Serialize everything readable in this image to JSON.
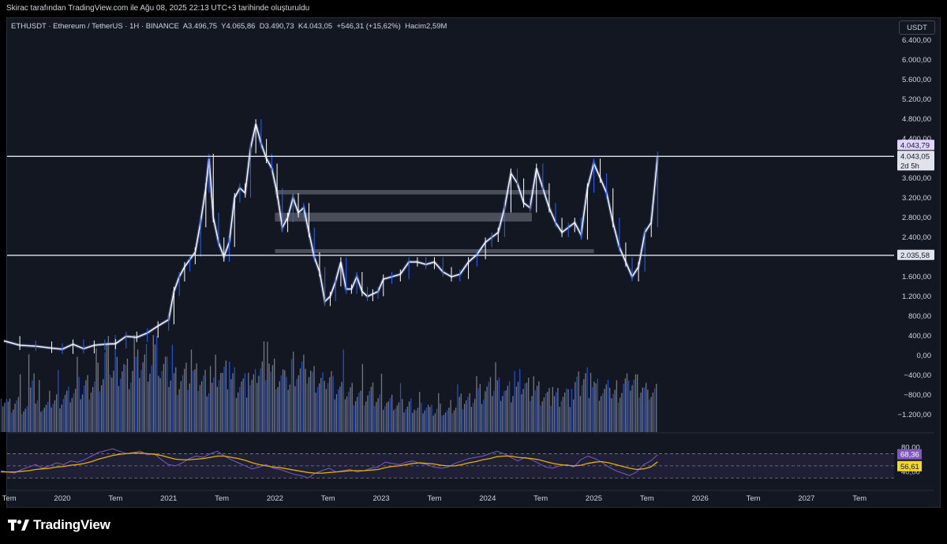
{
  "header": {
    "snapshot_text": "Skirac tarafından TradingView.com ile Ağu 08, 2025 22:13 UTC+3 tarihinde oluşturuldu"
  },
  "legend": {
    "symbol": "ETHUSDT · Ethereum / TetherUS · 1H · BINANCE",
    "open_label": "A",
    "open": "3.496,75",
    "high_label": "Y",
    "high": "4.065,86",
    "low_label": "D",
    "low": "3.490,73",
    "close_label": "K",
    "close": "4.043,05",
    "change": "+546,31 (+15,62%)",
    "volume_label": "Hacim",
    "volume": "2,59M"
  },
  "currency_button": "USDT",
  "colors": {
    "background": "#131722",
    "candle": "#ffffff",
    "candle_accent": "#2962ff",
    "volume": "#9598a1",
    "rsi_line": "#7e57c2",
    "rsi_ma": "#e0b200",
    "level_line": "#e0e3eb",
    "zone": "#787b86"
  },
  "brand": {
    "name": "TradingView",
    "logo_icon": "tradingview-logo-icon"
  },
  "chart_data": {
    "type": "line",
    "price_axis": {
      "ticks": [
        "6.400,00",
        "6.000,00",
        "5.600,00",
        "5.200,00",
        "4.800,00",
        "4.400,00",
        "3.600,00",
        "3.200,00",
        "2.800,00",
        "2.400,00",
        "1.600,00",
        "1.200,00",
        "800,00",
        "400,00",
        "0,00",
        "−400,00",
        "−800,00",
        "−1.200,00"
      ],
      "tick_values": [
        6400,
        6000,
        5600,
        5200,
        4800,
        4400,
        3600,
        3200,
        2800,
        2400,
        1600,
        1200,
        800,
        400,
        0,
        -400,
        -800,
        -1200
      ]
    },
    "price_labels": {
      "resistance": "4.043,79",
      "last_price": "4.043,05",
      "countdown": "2d 5h",
      "support": "2.035,58"
    },
    "levels": [
      4043.79,
      2035.58
    ],
    "zones": [
      {
        "from": "2022-01",
        "to": "2024-08",
        "low": 3270,
        "high": 3360
      },
      {
        "from": "2022-01",
        "to": "2024-06",
        "low": 2720,
        "high": 2900
      },
      {
        "from": "2022-01",
        "to": "2025-01",
        "low": 2080,
        "high": 2160
      }
    ],
    "time_axis": {
      "ticks": [
        "Tem",
        "2020",
        "Tem",
        "2021",
        "Tem",
        "2022",
        "Tem",
        "2023",
        "Tem",
        "2024",
        "Tem",
        "2025",
        "Tem",
        "2026",
        "Tem",
        "2027",
        "Tem"
      ],
      "tick_years": [
        2019.5,
        2020.0,
        2020.5,
        2021.0,
        2021.5,
        2022.0,
        2022.5,
        2023.0,
        2023.5,
        2024.0,
        2024.5,
        2025.0,
        2025.5,
        2026.0,
        2026.5,
        2027.0,
        2027.5
      ]
    },
    "series": [
      {
        "name": "ETHUSDT",
        "x": [
          2019.45,
          2019.6,
          2019.75,
          2019.9,
          2020.0,
          2020.1,
          2020.2,
          2020.3,
          2020.4,
          2020.5,
          2020.6,
          2020.7,
          2020.8,
          2020.9,
          2021.0,
          2021.05,
          2021.1,
          2021.15,
          2021.2,
          2021.25,
          2021.3,
          2021.35,
          2021.38,
          2021.42,
          2021.47,
          2021.52,
          2021.57,
          2021.62,
          2021.67,
          2021.72,
          2021.77,
          2021.82,
          2021.87,
          2021.92,
          2021.97,
          2022.02,
          2022.07,
          2022.12,
          2022.17,
          2022.22,
          2022.27,
          2022.32,
          2022.37,
          2022.42,
          2022.47,
          2022.52,
          2022.57,
          2022.62,
          2022.67,
          2022.72,
          2022.77,
          2022.82,
          2022.87,
          2022.92,
          2022.97,
          2023.02,
          2023.1,
          2023.18,
          2023.26,
          2023.34,
          2023.42,
          2023.5,
          2023.58,
          2023.66,
          2023.74,
          2023.82,
          2023.9,
          2023.98,
          2024.04,
          2024.1,
          2024.16,
          2024.22,
          2024.28,
          2024.34,
          2024.4,
          2024.46,
          2024.52,
          2024.58,
          2024.64,
          2024.7,
          2024.76,
          2024.82,
          2024.88,
          2024.94,
          2025.0,
          2025.06,
          2025.12,
          2025.18,
          2025.24,
          2025.3,
          2025.36,
          2025.42,
          2025.48,
          2025.54,
          2025.6
        ],
        "values": [
          300,
          210,
          190,
          150,
          130,
          230,
          140,
          210,
          230,
          240,
          390,
          370,
          460,
          600,
          730,
          1300,
          1600,
          1800,
          1950,
          2100,
          2700,
          3400,
          4000,
          2800,
          2300,
          2000,
          2300,
          3200,
          3400,
          3300,
          4200,
          4700,
          4300,
          4000,
          3800,
          3300,
          2600,
          2800,
          3200,
          2900,
          3000,
          2500,
          2000,
          1700,
          1100,
          1200,
          1500,
          1900,
          1350,
          1350,
          1600,
          1300,
          1200,
          1250,
          1300,
          1550,
          1600,
          1650,
          1900,
          1900,
          1850,
          1900,
          1700,
          1600,
          1650,
          1900,
          2050,
          2300,
          2400,
          2500,
          3000,
          3700,
          3500,
          3100,
          3000,
          3800,
          3400,
          3000,
          2700,
          2500,
          2600,
          2700,
          2450,
          3400,
          3900,
          3600,
          3300,
          2700,
          2200,
          1900,
          1600,
          1800,
          2500,
          2700,
          4043
        ]
      }
    ],
    "volume": {
      "ticks": [],
      "values": [
        30,
        25,
        28,
        22,
        60,
        26,
        24,
        30,
        32,
        34,
        38,
        40,
        44,
        46,
        52,
        70,
        58,
        62,
        55,
        60,
        66,
        68,
        72,
        60,
        55,
        50,
        52,
        54,
        50,
        48,
        45,
        58,
        52,
        50,
        46,
        44,
        46,
        60,
        70,
        55,
        50,
        45,
        62,
        58,
        54,
        48,
        46,
        50,
        42,
        40,
        38,
        36,
        34,
        36,
        32,
        30,
        28,
        26,
        24,
        26,
        22,
        24,
        20,
        22,
        20,
        24,
        28,
        30,
        34,
        36,
        40,
        44,
        42,
        38,
        40,
        46,
        42,
        38,
        34,
        32,
        34,
        36,
        32,
        44,
        50,
        46,
        40,
        38,
        36,
        40,
        44,
        46,
        42,
        38,
        36
      ]
    },
    "rsi": {
      "axis_ticks": [
        "80,00",
        "40,00"
      ],
      "axis_values": [
        80,
        40
      ],
      "value_label": "68,36",
      "ma_label": "56,61",
      "ylim": [
        20,
        90
      ],
      "series": [
        {
          "name": "RSI",
          "values": [
            42,
            40,
            38,
            44,
            48,
            52,
            46,
            50,
            55,
            52,
            58,
            56,
            60,
            66,
            72,
            75,
            78,
            74,
            70,
            72,
            74,
            68,
            70,
            60,
            52,
            50,
            55,
            62,
            66,
            64,
            70,
            74,
            66,
            60,
            55,
            50,
            45,
            48,
            52,
            46,
            44,
            40,
            36,
            34,
            30,
            38,
            42,
            46,
            40,
            42,
            44,
            40,
            42,
            46,
            48,
            56,
            54,
            52,
            56,
            58,
            54,
            52,
            48,
            46,
            48,
            54,
            58,
            62,
            64,
            66,
            70,
            74,
            70,
            64,
            58,
            64,
            60,
            54,
            48,
            46,
            50,
            52,
            48,
            60,
            66,
            62,
            56,
            48,
            42,
            38,
            34,
            40,
            52,
            58,
            68.36
          ]
        },
        {
          "name": "RSI MA",
          "values": [
            40,
            40,
            40,
            41,
            42,
            44,
            45,
            46,
            48,
            49,
            51,
            52,
            54,
            57,
            61,
            64,
            67,
            69,
            70,
            71,
            71,
            70,
            69,
            67,
            64,
            61,
            60,
            60,
            61,
            62,
            64,
            66,
            66,
            64,
            62,
            59,
            55,
            52,
            50,
            48,
            47,
            45,
            43,
            41,
            39,
            38,
            38,
            39,
            40,
            41,
            42,
            42,
            42,
            43,
            44,
            47,
            49,
            50,
            52,
            54,
            55,
            54,
            53,
            51,
            50,
            50,
            52,
            55,
            57,
            60,
            62,
            65,
            66,
            66,
            64,
            63,
            62,
            60,
            57,
            54,
            52,
            51,
            50,
            51,
            54,
            56,
            57,
            55,
            52,
            49,
            46,
            44,
            45,
            48,
            56.61
          ]
        }
      ]
    }
  }
}
